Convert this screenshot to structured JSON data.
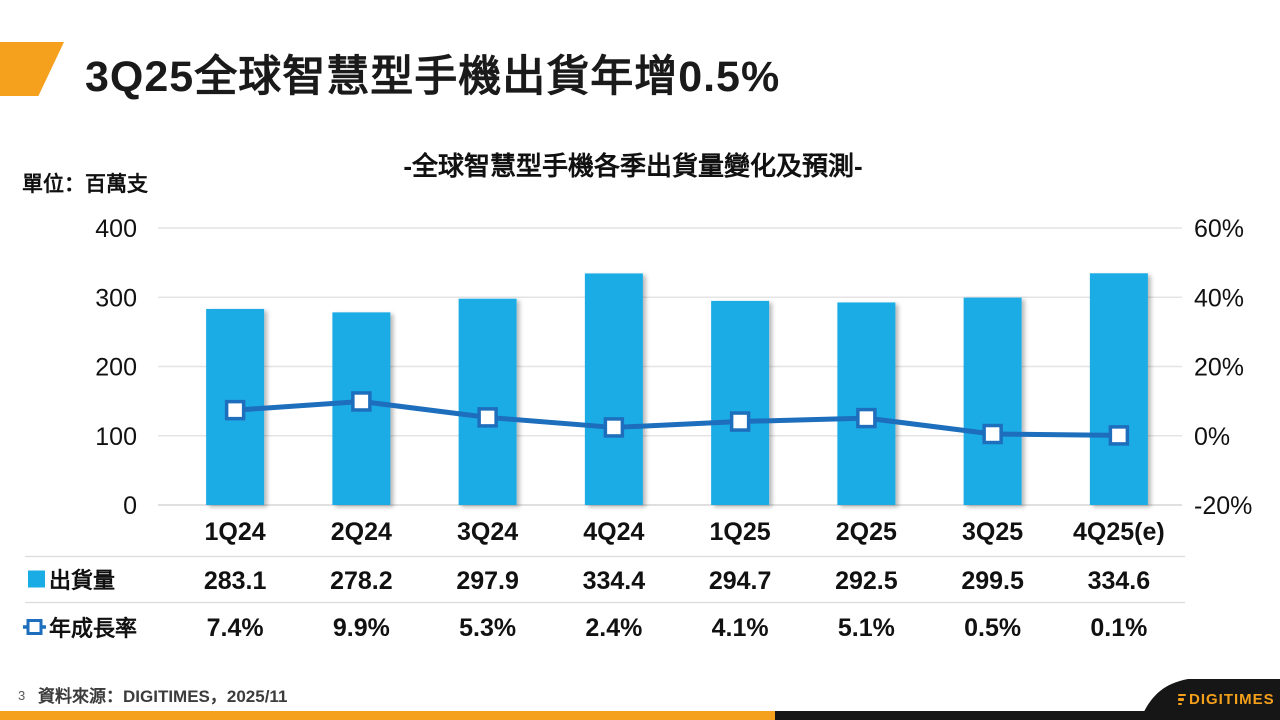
{
  "slide": {
    "title": "3Q25全球智慧型手機出貨年增0.5%",
    "page_number": "3",
    "source": "資料來源：DIGITIMES，2025/11",
    "logo_text": "DIGITIMES"
  },
  "colors": {
    "accent_orange": "#F5A11D",
    "bar_blue": "#1AACE5",
    "line_blue": "#1D6EBC",
    "grid_gray": "#E4E4E4",
    "baseline_gray": "#D6D6D6",
    "separator_gray": "#DCDCDC",
    "footer_black": "#161616",
    "text_black": "#111111"
  },
  "chart_data": {
    "type": "combo-bar-line",
    "title": "-全球智慧型手機各季出貨量變化及預測-",
    "unit_label": "單位：百萬支",
    "categories": [
      "1Q24",
      "2Q24",
      "3Q24",
      "4Q24",
      "1Q25",
      "2Q25",
      "3Q25",
      "4Q25(e)"
    ],
    "series": [
      {
        "name": "出貨量",
        "type": "bar",
        "axis": "left",
        "values": [
          283.1,
          278.2,
          297.9,
          334.4,
          294.7,
          292.5,
          299.5,
          334.6
        ],
        "color": "#1AACE5",
        "legend_icon": "blue-square"
      },
      {
        "name": "年成長率",
        "type": "line",
        "axis": "right",
        "values_percent": [
          7.4,
          9.9,
          5.3,
          2.4,
          4.1,
          5.1,
          0.5,
          0.1
        ],
        "color": "#1D6EBC",
        "legend_icon": "line-with-square-marker",
        "marker": "white-square"
      }
    ],
    "left_axis": {
      "min": 0,
      "max": 400,
      "ticks": [
        0,
        100,
        200,
        300,
        400
      ]
    },
    "right_axis": {
      "min": -20,
      "max": 60,
      "ticks": [
        -20,
        0,
        20,
        40,
        60
      ],
      "suffix": "%"
    },
    "grid": true,
    "legend_position": "data-table-left"
  }
}
